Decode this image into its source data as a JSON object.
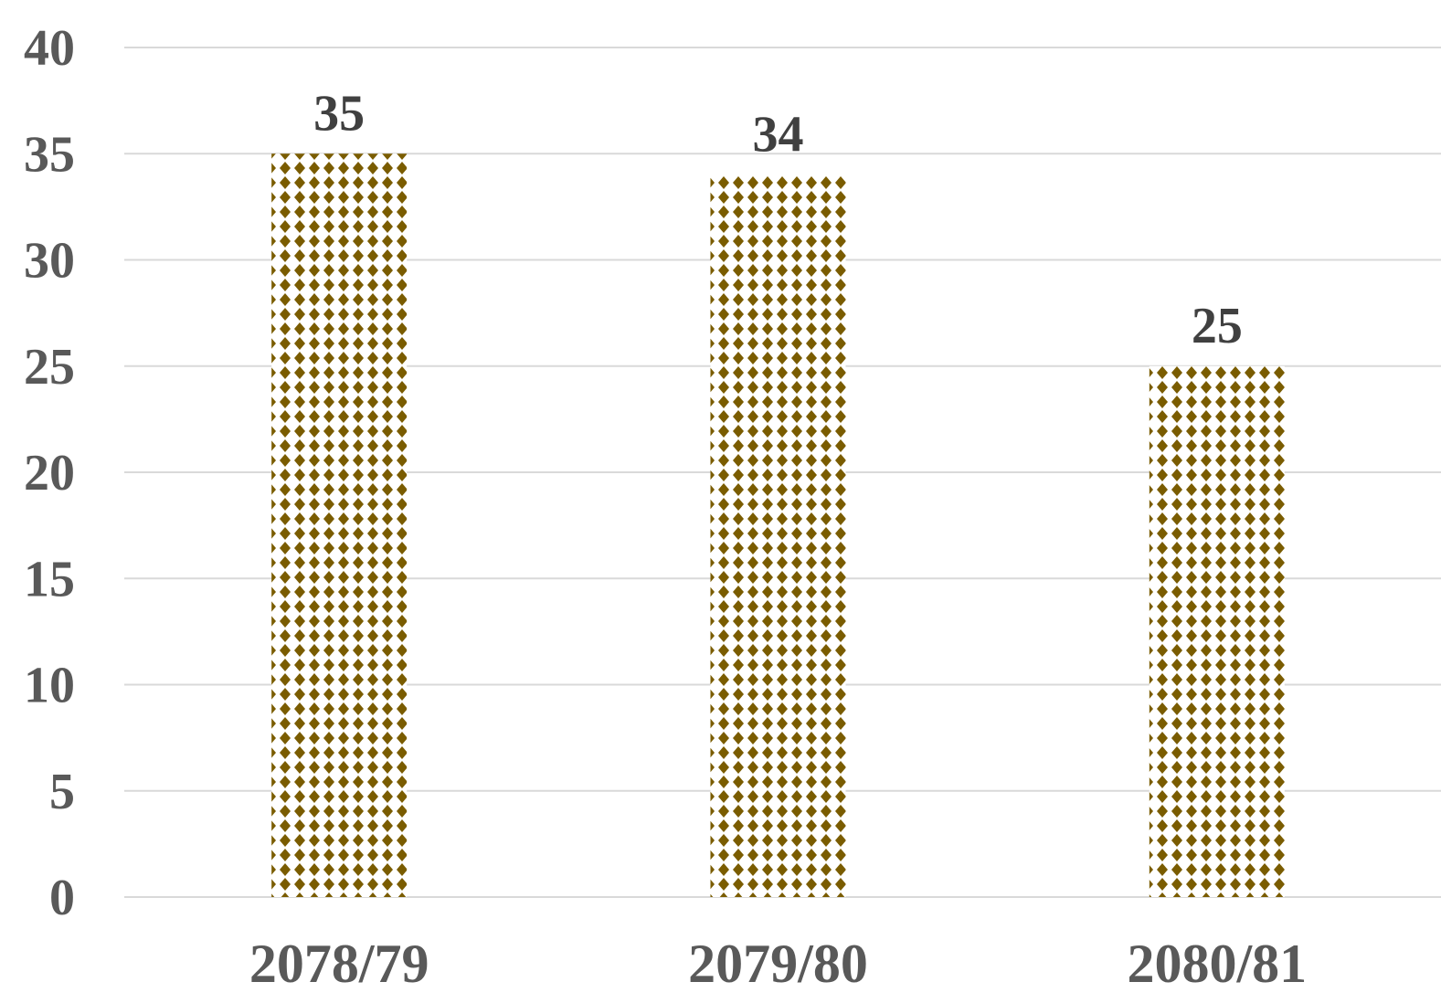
{
  "chart_data": {
    "type": "bar",
    "categories": [
      "2078/79",
      "2079/80",
      "2080/81"
    ],
    "values": [
      35,
      34,
      25
    ],
    "data_labels": [
      "35",
      "34",
      "25"
    ],
    "ylim": [
      0,
      40
    ],
    "y_ticks": [
      "0",
      "5",
      "10",
      "15",
      "20",
      "25",
      "30",
      "35",
      "40"
    ],
    "title": "",
    "xlabel": "",
    "ylabel": "",
    "grid": true,
    "legend": "none",
    "bar_fill": "diamond-dot pattern",
    "colors": {
      "bar_pattern": "#7a5c00",
      "bar_background": "#ffffff",
      "gridline": "#d9d9d9",
      "tick_text": "#595959",
      "data_label_text": "#404040"
    }
  }
}
